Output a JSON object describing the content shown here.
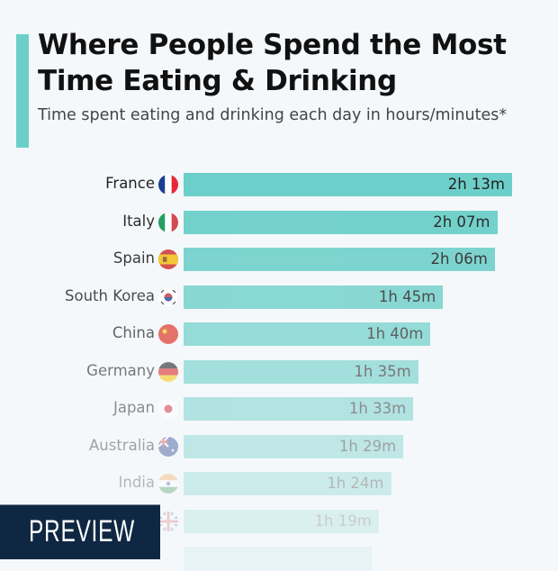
{
  "header": {
    "title_line1": "Where People Spend the Most",
    "title_line2": "Time Eating & Drinking",
    "subtitle": "Time spent eating and drinking each day in hours/minutes*"
  },
  "preview_badge": "PREVIEW",
  "chart_data": {
    "type": "bar",
    "orientation": "horizontal",
    "title": "Where People Spend the Most Time Eating & Drinking",
    "subtitle": "Time spent eating and drinking each day in hours/minutes*",
    "bar_color": "#6dcfc9",
    "categories": [
      "France",
      "Italy",
      "Spain",
      "South Korea",
      "China",
      "Germany",
      "Japan",
      "Australia",
      "India",
      "United Kingdom",
      ""
    ],
    "values_minutes": [
      133,
      127,
      126,
      105,
      100,
      95,
      93,
      89,
      84,
      79,
      76
    ],
    "labels": [
      "2h 13m",
      "2h 07m",
      "2h 06m",
      "1h 45m",
      "1h 40m",
      "1h 35m",
      "1h 33m",
      "1h 29m",
      "1h 24m",
      "1h 19m",
      ""
    ],
    "flags": [
      "fr",
      "it",
      "es",
      "kr",
      "cn",
      "de",
      "jp",
      "au",
      "in",
      "gb",
      ""
    ]
  }
}
